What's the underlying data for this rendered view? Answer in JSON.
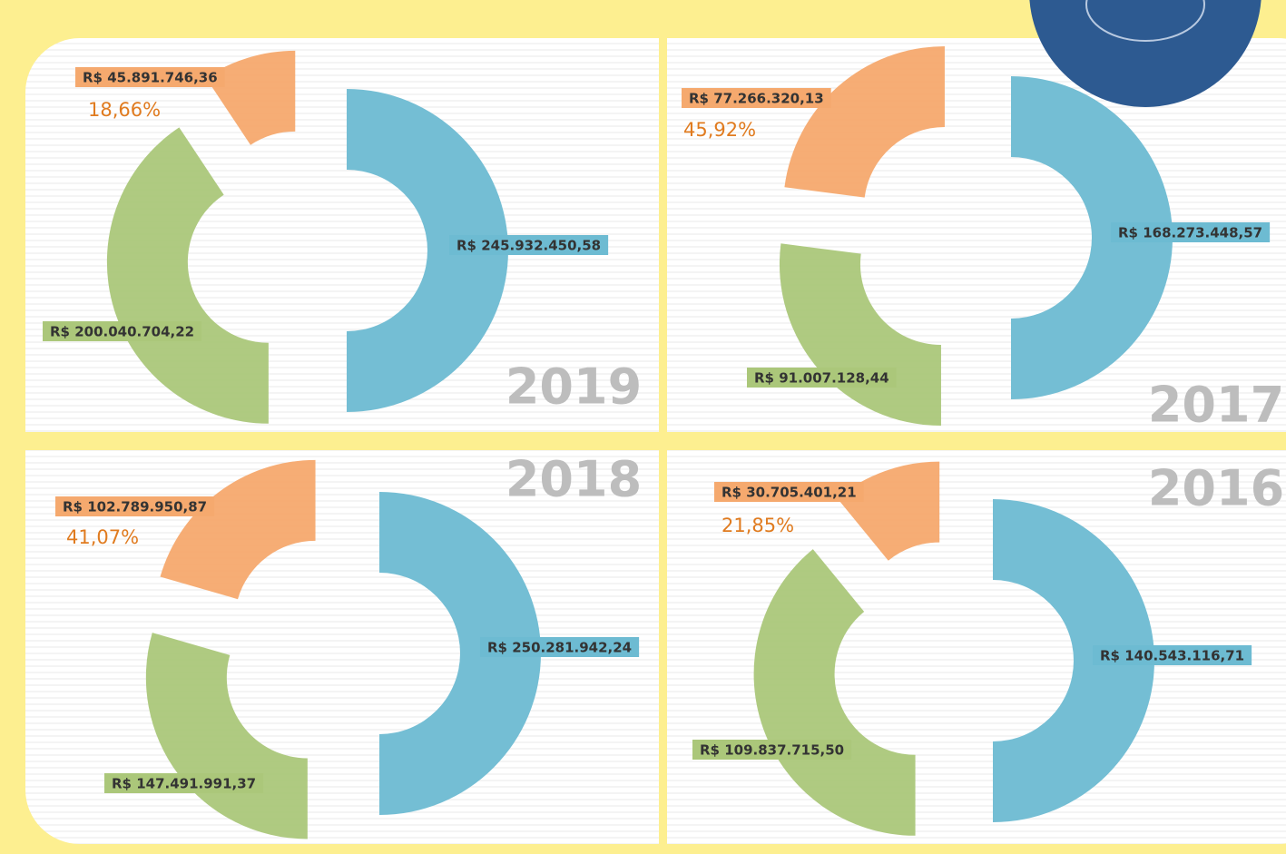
{
  "chart_data": [
    {
      "type": "pie",
      "title": "2019",
      "values": [
        245932450.58,
        200040704.22,
        45891746.36
      ],
      "value_labels": [
        "R$ 245.932.450,58",
        "R$ 200.040.704,22",
        "R$ 45.891.746,36"
      ],
      "colors": [
        "#6dbbd2",
        "#abc77a",
        "#f5a96e"
      ],
      "annotation": "18,66%"
    },
    {
      "type": "pie",
      "title": "2017",
      "values": [
        168273448.57,
        91007128.44,
        77266320.13
      ],
      "value_labels": [
        "R$ 168.273.448,57",
        "R$ 91.007.128,44",
        "R$ 77.266.320,13"
      ],
      "colors": [
        "#6dbbd2",
        "#abc77a",
        "#f5a96e"
      ],
      "annotation": "45,92%"
    },
    {
      "type": "pie",
      "title": "2018",
      "values": [
        250281942.24,
        147491991.37,
        102789950.87
      ],
      "value_labels": [
        "R$ 250.281.942,24",
        "R$ 147.491.991,37",
        "R$ 102.789.950,87"
      ],
      "colors": [
        "#6dbbd2",
        "#abc77a",
        "#f5a96e"
      ],
      "annotation": "41,07%"
    },
    {
      "type": "pie",
      "title": "2016",
      "values": [
        140543116.71,
        109837715.5,
        30705401.21
      ],
      "value_labels": [
        "R$ 140.543.116,71",
        "R$ 109.837.715,50",
        "R$ 30.705.401,21"
      ],
      "colors": [
        "#6dbbd2",
        "#abc77a",
        "#f5a96e"
      ],
      "annotation": "21,85%"
    }
  ]
}
